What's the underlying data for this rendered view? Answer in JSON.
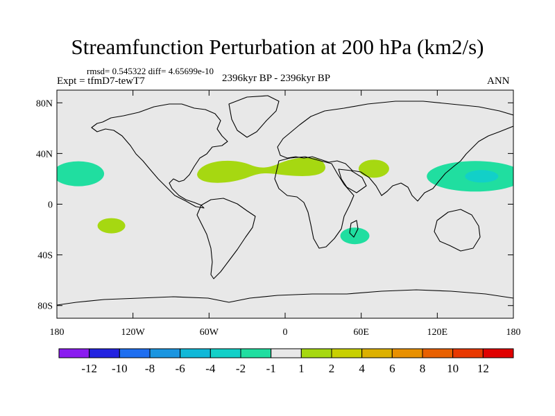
{
  "header": {
    "title": "Streamfunction Perturbation at 200 hPa (km2/s)",
    "stats": "rmsd= 0.545322 diff= 4.65699e-10",
    "expt": "Expt = tfmD7-tewT7",
    "period": "2396kyr BP - 2396kyr BP",
    "season": "ANN"
  },
  "chart_data": {
    "type": "heatmap",
    "title": "Streamfunction Perturbation at 200 hPa (km2/s)",
    "projection": "cylindrical equidistant",
    "xlim": [
      -180,
      180
    ],
    "ylim": [
      -90,
      90
    ],
    "x_ticks": [
      {
        "value": -180,
        "label": "180"
      },
      {
        "value": -120,
        "label": "120W"
      },
      {
        "value": -60,
        "label": "60W"
      },
      {
        "value": 0,
        "label": "0"
      },
      {
        "value": 60,
        "label": "60E"
      },
      {
        "value": 120,
        "label": "120E"
      },
      {
        "value": 180,
        "label": "180"
      }
    ],
    "y_ticks": [
      {
        "value": 80,
        "label": "80N"
      },
      {
        "value": 40,
        "label": "40N"
      },
      {
        "value": 0,
        "label": "0"
      },
      {
        "value": -40,
        "label": "40S"
      },
      {
        "value": -80,
        "label": "80S"
      }
    ],
    "background_value_range": [
      -1,
      1
    ],
    "background_color": "#e8e8e8",
    "colorbar": {
      "labels": [
        "-12",
        "-10",
        "-8",
        "-6",
        "-4",
        "-2",
        "-1",
        "1",
        "2",
        "4",
        "6",
        "8",
        "10",
        "12"
      ],
      "colors": [
        "#8a1bf0",
        "#2222e0",
        "#1e6ef0",
        "#1a95e0",
        "#10b8d8",
        "#12d0c8",
        "#20dea0",
        "#e8e8e8",
        "#a6d811",
        "#c8d000",
        "#dcb000",
        "#e89000",
        "#e86000",
        "#e83800",
        "#e00000"
      ]
    },
    "anomalies": [
      {
        "name": "central-north-pacific",
        "lon": -163,
        "lat": 24,
        "color": "#20dea0",
        "bin": "-2 to -1"
      },
      {
        "name": "south-pacific",
        "lon": -137,
        "lat": -17,
        "color": "#a6d811",
        "bin": "1 to 2"
      },
      {
        "name": "tropical-atlantic-africa",
        "lon": -12,
        "lat": 27,
        "color": "#a6d811",
        "bin": "1 to 2"
      },
      {
        "name": "arabian-india",
        "lon": 70,
        "lat": 28,
        "color": "#a6d811",
        "bin": "1 to 2"
      },
      {
        "name": "madagascar",
        "lon": 55,
        "lat": -25,
        "color": "#20dea0",
        "bin": "-2 to -1"
      },
      {
        "name": "west-pacific-outer",
        "lon": 150,
        "lat": 22,
        "color": "#20dea0",
        "bin": "-2 to -1"
      },
      {
        "name": "west-pacific-inner",
        "lon": 155,
        "lat": 22,
        "color": "#12d0c8",
        "bin": "-4 to -2"
      }
    ]
  }
}
